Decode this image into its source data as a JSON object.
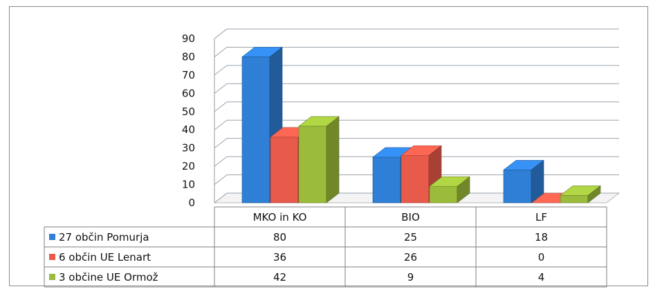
{
  "chart_data": {
    "type": "bar",
    "categories": [
      "MKO in KO",
      "BIO",
      "LF"
    ],
    "series": [
      {
        "name": "27 občin Pomurja",
        "values": [
          80,
          25,
          18
        ],
        "color": "#2f7fd6"
      },
      {
        "name": "6 občin UE Lenart",
        "values": [
          36,
          26,
          0
        ],
        "color": "#e85a4a"
      },
      {
        "name": "3 občine UE Ormož",
        "values": [
          42,
          9,
          4
        ],
        "color": "#9bbb3b"
      }
    ],
    "yticks": [
      "0",
      "10",
      "20",
      "30",
      "40",
      "50",
      "60",
      "70",
      "80",
      "90"
    ],
    "ylim": [
      0,
      90
    ],
    "grid": true,
    "legend": "data-table"
  }
}
